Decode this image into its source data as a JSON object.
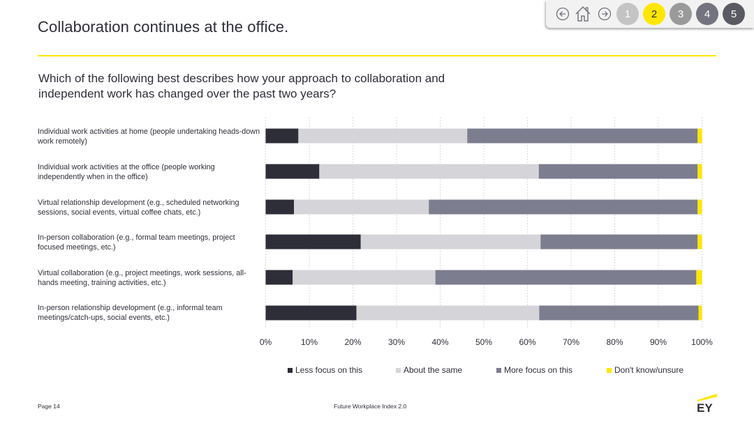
{
  "header": {
    "title": "Collaboration continues at the office."
  },
  "nav": {
    "pages": [
      "1",
      "2",
      "3",
      "4",
      "5"
    ],
    "active_page": "2",
    "page_colors": [
      "#c4c4c4",
      "#ffe600",
      "#9a9a9a",
      "#747480",
      "#5a5a62"
    ],
    "active_text_color": "#2e2e38"
  },
  "question": "Which of the following best describes how your approach to collaboration and independent work has changed over the past two years?",
  "chart_data": {
    "type": "bar",
    "orientation": "horizontal",
    "stacked": true,
    "categories": [
      "Individual work activities at home (people undertaking heads-down work remotely)",
      "Individual work activities at the office (people working independently when in the office)",
      "Virtual relationship development (e.g., scheduled networking sessions, social events, virtual coffee chats, etc.)",
      "In-person collaboration (e.g., formal team meetings, project focused meetings, etc.)",
      "Virtual collaboration (e.g., project meetings, work sessions, all-hands meeting, training activities, etc.)",
      "In-person relationship development (e.g., informal team meetings/catch-ups, social events, etc.)"
    ],
    "series": [
      {
        "name": "Less focus on this",
        "color": "#2e2e38",
        "values": [
          7.5,
          12.3,
          6.5,
          21.8,
          6.2,
          20.8
        ]
      },
      {
        "name": "About the same",
        "color": "#d5d5d9",
        "values": [
          38.7,
          50.3,
          30.9,
          41.2,
          32.7,
          41.9
        ]
      },
      {
        "name": "More focus on this",
        "color": "#7d7d90",
        "values": [
          52.8,
          36.4,
          61.6,
          36.0,
          59.8,
          36.5
        ]
      },
      {
        "name": "Don't know/unsure",
        "color": "#ffe600",
        "values": [
          1.0,
          1.0,
          1.0,
          1.0,
          1.3,
          0.8
        ]
      }
    ],
    "xlim": [
      0,
      100
    ],
    "xticks": [
      "0%",
      "10%",
      "20%",
      "30%",
      "40%",
      "50%",
      "60%",
      "70%",
      "80%",
      "90%",
      "100%"
    ],
    "grid": true,
    "legend": "bottom"
  },
  "footer": {
    "page": "Page 14",
    "center": "Future Workplace Index 2.0",
    "logo_text": "EY"
  }
}
